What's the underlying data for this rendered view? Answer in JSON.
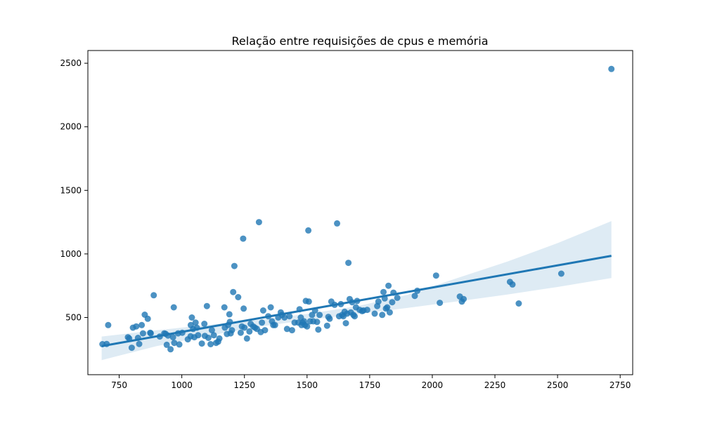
{
  "chart_data": {
    "type": "scatter",
    "title": "Relação entre requisições de cpus e memória",
    "xlabel": "",
    "ylabel": "",
    "xlim": [
      625,
      2800
    ],
    "ylim": [
      50,
      2600
    ],
    "x_ticks": [
      750,
      1000,
      1250,
      1500,
      1750,
      2000,
      2250,
      2500,
      2750
    ],
    "y_ticks": [
      500,
      1000,
      1500,
      2000,
      2500
    ],
    "grid": false,
    "colors": {
      "points": "#1f77b4",
      "line": "#1f77b4",
      "band": "#1f77b4"
    },
    "regression": {
      "x": [
        680,
        2715
      ],
      "y": [
        275,
        985
      ],
      "ci_lower": [
        165,
        810
      ],
      "ci_upper": [
        350,
        1258
      ],
      "ci_samples_x": [
        680,
        900,
        1100,
        1300,
        1500,
        1700,
        1900,
        2100,
        2300,
        2500,
        2715
      ],
      "ci_samples_lower": [
        165,
        275,
        355,
        425,
        480,
        527,
        575,
        627,
        681,
        740,
        810
      ],
      "ci_samples_upper": [
        350,
        400,
        440,
        480,
        528,
        588,
        678,
        810,
        940,
        1085,
        1258
      ]
    },
    "points": [
      [
        683,
        290
      ],
      [
        700,
        292
      ],
      [
        706,
        440
      ],
      [
        785,
        345
      ],
      [
        790,
        335
      ],
      [
        800,
        262
      ],
      [
        805,
        420
      ],
      [
        818,
        430
      ],
      [
        825,
        340
      ],
      [
        830,
        292
      ],
      [
        840,
        440
      ],
      [
        845,
        375
      ],
      [
        852,
        522
      ],
      [
        864,
        490
      ],
      [
        874,
        380
      ],
      [
        876,
        375
      ],
      [
        888,
        675
      ],
      [
        912,
        350
      ],
      [
        930,
        375
      ],
      [
        935,
        372
      ],
      [
        940,
        285
      ],
      [
        945,
        358
      ],
      [
        955,
        250
      ],
      [
        965,
        345
      ],
      [
        968,
        580
      ],
      [
        970,
        300
      ],
      [
        985,
        375
      ],
      [
        990,
        288
      ],
      [
        1002,
        380
      ],
      [
        1024,
        328
      ],
      [
        1035,
        352
      ],
      [
        1036,
        440
      ],
      [
        1040,
        500
      ],
      [
        1045,
        410
      ],
      [
        1050,
        345
      ],
      [
        1055,
        460
      ],
      [
        1060,
        420
      ],
      [
        1065,
        360
      ],
      [
        1080,
        295
      ],
      [
        1090,
        450
      ],
      [
        1092,
        355
      ],
      [
        1100,
        590
      ],
      [
        1106,
        340
      ],
      [
        1115,
        290
      ],
      [
        1120,
        400
      ],
      [
        1128,
        360
      ],
      [
        1137,
        300
      ],
      [
        1145,
        310
      ],
      [
        1150,
        335
      ],
      [
        1170,
        580
      ],
      [
        1172,
        420
      ],
      [
        1180,
        370
      ],
      [
        1185,
        440
      ],
      [
        1190,
        525
      ],
      [
        1192,
        465
      ],
      [
        1195,
        375
      ],
      [
        1200,
        400
      ],
      [
        1205,
        700
      ],
      [
        1210,
        905
      ],
      [
        1225,
        660
      ],
      [
        1235,
        380
      ],
      [
        1240,
        430
      ],
      [
        1245,
        1120
      ],
      [
        1247,
        570
      ],
      [
        1250,
        420
      ],
      [
        1260,
        335
      ],
      [
        1270,
        390
      ],
      [
        1275,
        450
      ],
      [
        1285,
        430
      ],
      [
        1292,
        420
      ],
      [
        1300,
        410
      ],
      [
        1308,
        1250
      ],
      [
        1315,
        385
      ],
      [
        1320,
        460
      ],
      [
        1325,
        555
      ],
      [
        1332,
        400
      ],
      [
        1345,
        510
      ],
      [
        1355,
        580
      ],
      [
        1360,
        470
      ],
      [
        1365,
        440
      ],
      [
        1372,
        440
      ],
      [
        1385,
        500
      ],
      [
        1395,
        540
      ],
      [
        1400,
        520
      ],
      [
        1410,
        500
      ],
      [
        1420,
        410
      ],
      [
        1430,
        510
      ],
      [
        1440,
        400
      ],
      [
        1450,
        460
      ],
      [
        1465,
        460
      ],
      [
        1470,
        565
      ],
      [
        1475,
        500
      ],
      [
        1478,
        440
      ],
      [
        1482,
        460
      ],
      [
        1488,
        470
      ],
      [
        1492,
        440
      ],
      [
        1495,
        630
      ],
      [
        1500,
        430
      ],
      [
        1505,
        1185
      ],
      [
        1507,
        625
      ],
      [
        1512,
        470
      ],
      [
        1520,
        520
      ],
      [
        1525,
        470
      ],
      [
        1532,
        555
      ],
      [
        1540,
        465
      ],
      [
        1545,
        405
      ],
      [
        1550,
        520
      ],
      [
        1580,
        435
      ],
      [
        1585,
        505
      ],
      [
        1590,
        490
      ],
      [
        1597,
        625
      ],
      [
        1610,
        600
      ],
      [
        1620,
        1240
      ],
      [
        1628,
        510
      ],
      [
        1635,
        605
      ],
      [
        1640,
        520
      ],
      [
        1645,
        510
      ],
      [
        1650,
        545
      ],
      [
        1655,
        455
      ],
      [
        1660,
        530
      ],
      [
        1665,
        930
      ],
      [
        1670,
        645
      ],
      [
        1675,
        540
      ],
      [
        1680,
        620
      ],
      [
        1685,
        520
      ],
      [
        1690,
        510
      ],
      [
        1695,
        580
      ],
      [
        1700,
        630
      ],
      [
        1710,
        560
      ],
      [
        1720,
        550
      ],
      [
        1725,
        555
      ],
      [
        1740,
        560
      ],
      [
        1770,
        530
      ],
      [
        1780,
        590
      ],
      [
        1785,
        625
      ],
      [
        1800,
        520
      ],
      [
        1805,
        700
      ],
      [
        1810,
        650
      ],
      [
        1815,
        570
      ],
      [
        1820,
        580
      ],
      [
        1825,
        750
      ],
      [
        1830,
        540
      ],
      [
        1840,
        620
      ],
      [
        1845,
        695
      ],
      [
        1860,
        655
      ],
      [
        1930,
        670
      ],
      [
        1940,
        710
      ],
      [
        2015,
        830
      ],
      [
        2030,
        615
      ],
      [
        2110,
        665
      ],
      [
        2118,
        625
      ],
      [
        2125,
        645
      ],
      [
        2310,
        780
      ],
      [
        2320,
        760
      ],
      [
        2345,
        610
      ],
      [
        2515,
        845
      ],
      [
        2715,
        2455
      ]
    ]
  }
}
